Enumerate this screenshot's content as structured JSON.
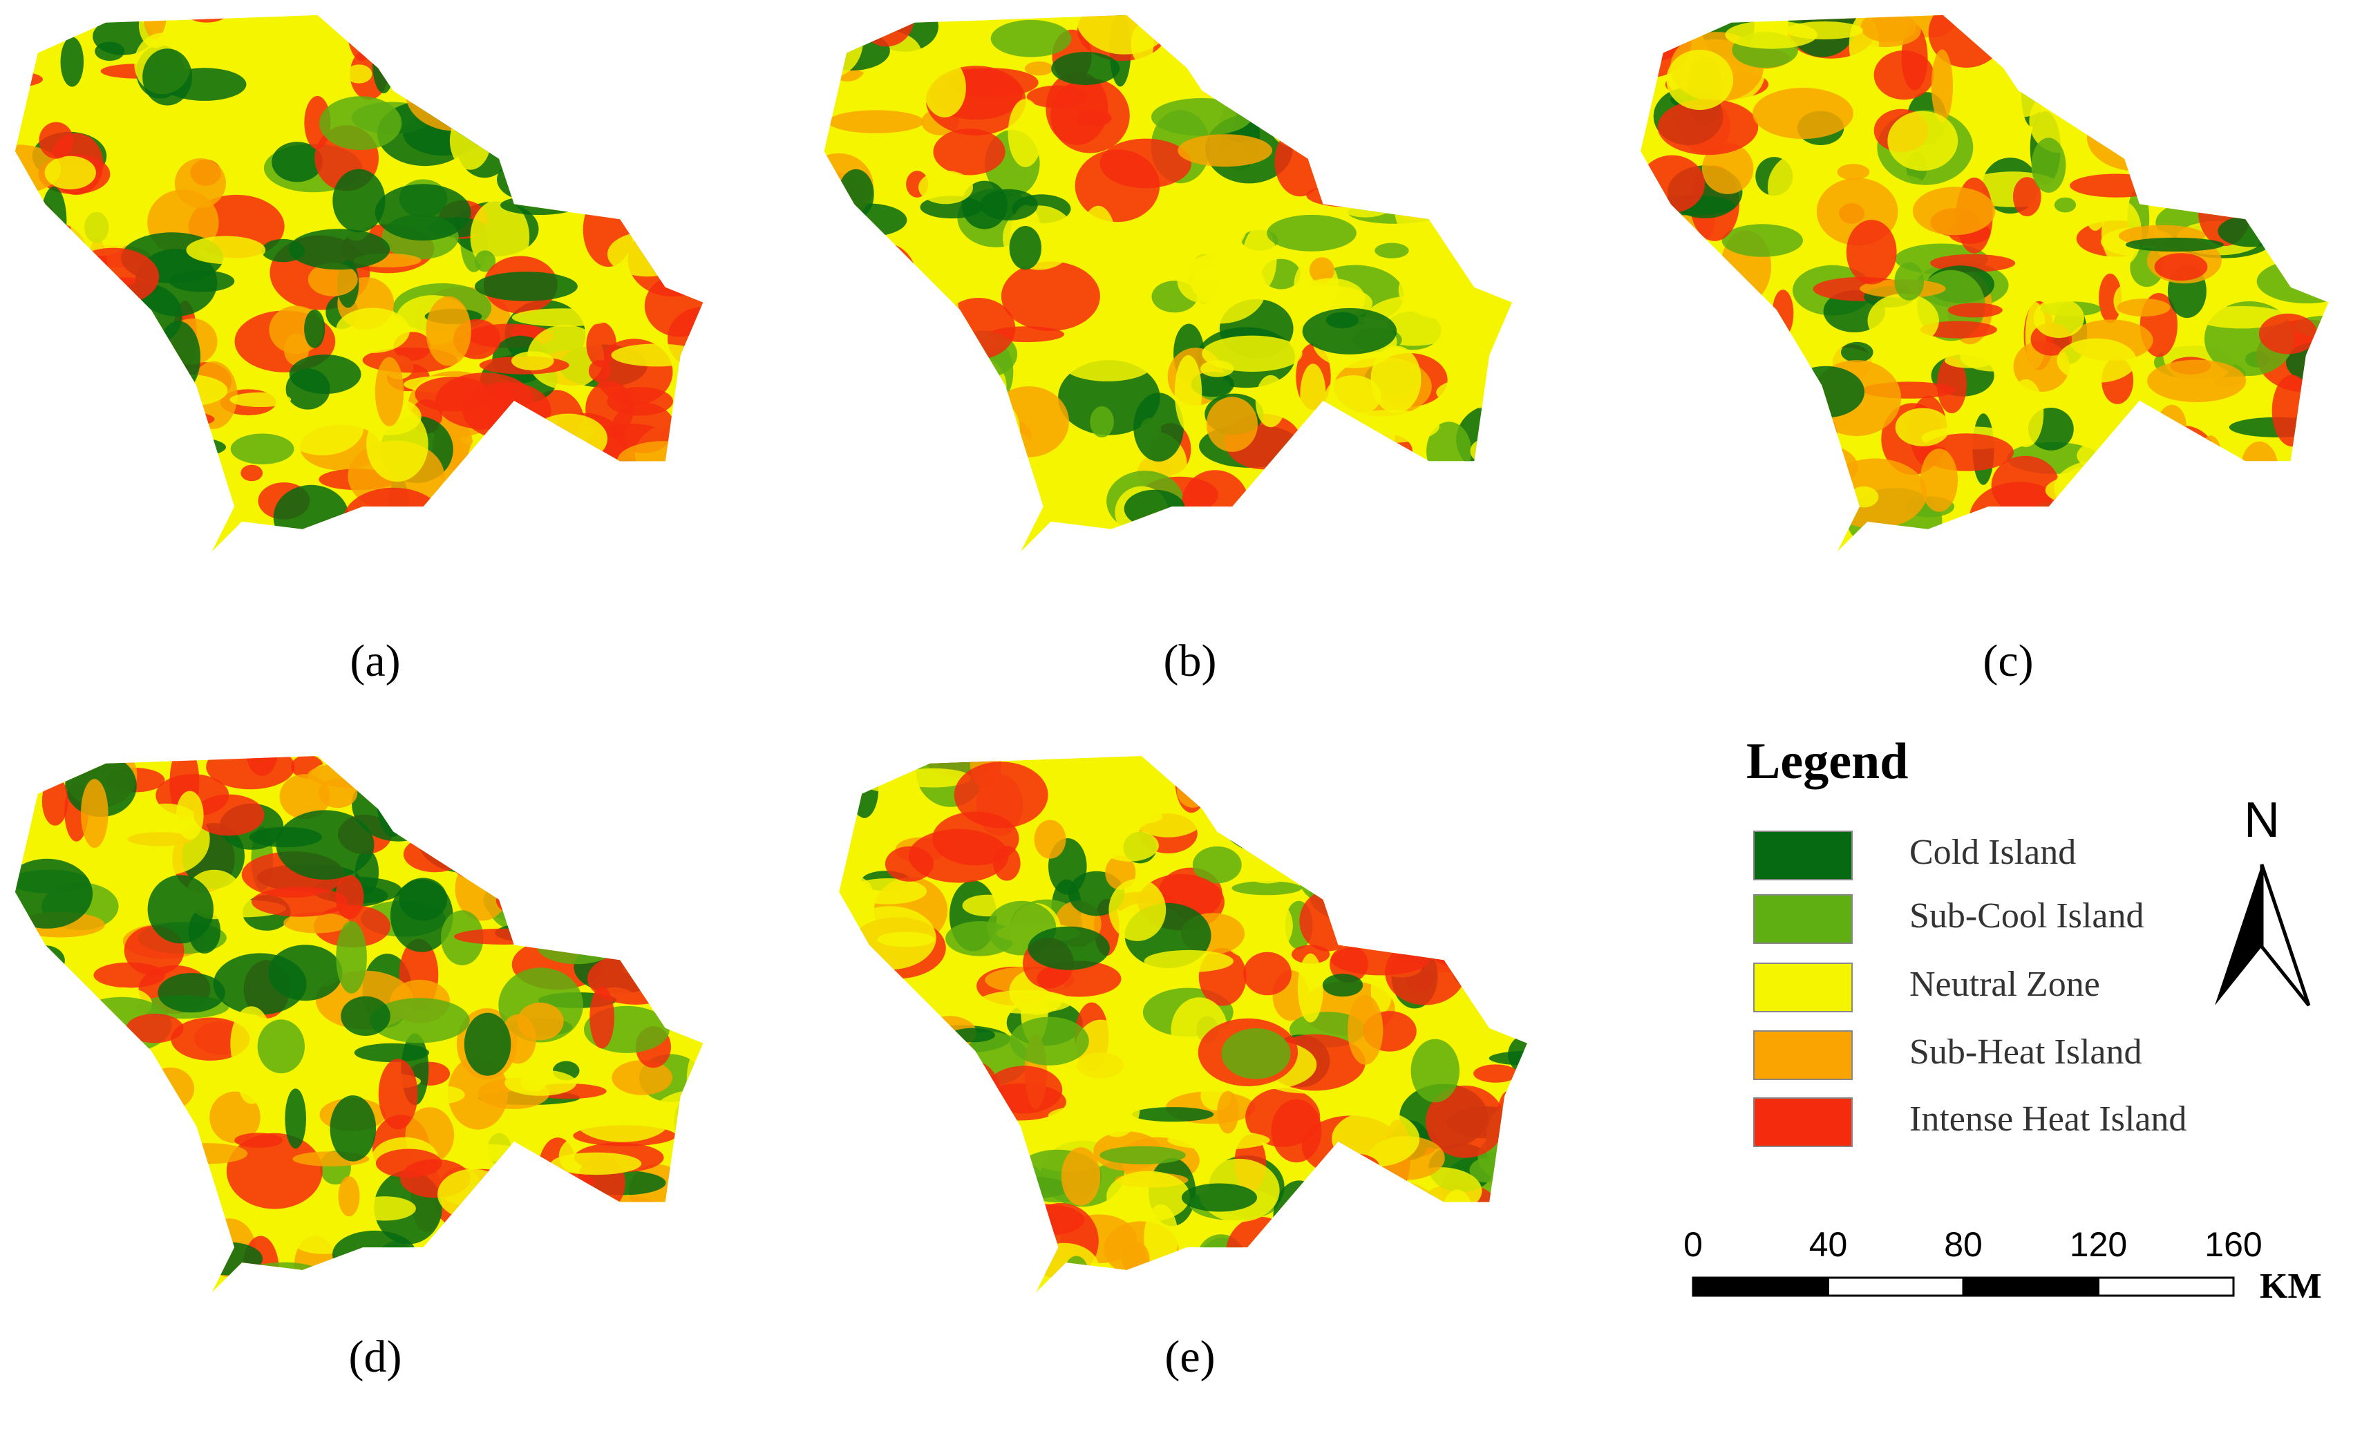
{
  "panels": [
    {
      "label": "(a)"
    },
    {
      "label": "(b)"
    },
    {
      "label": "(c)"
    },
    {
      "label": "(d)"
    },
    {
      "label": "(e)"
    }
  ],
  "legend": {
    "title": "Legend",
    "items": [
      {
        "label": "Cold Island",
        "color": "#056a12"
      },
      {
        "label": "Sub-Cool Island",
        "color": "#5fae12"
      },
      {
        "label": "Neutral Zone",
        "color": "#f6f500"
      },
      {
        "label": "Sub-Heat Island",
        "color": "#f9a400"
      },
      {
        "label": "Intense Heat Island",
        "color": "#f52b0e"
      }
    ]
  },
  "north_arrow": {
    "label": "N"
  },
  "scale_bar": {
    "ticks": [
      0,
      40,
      80,
      120,
      160
    ],
    "unit": "KM"
  }
}
